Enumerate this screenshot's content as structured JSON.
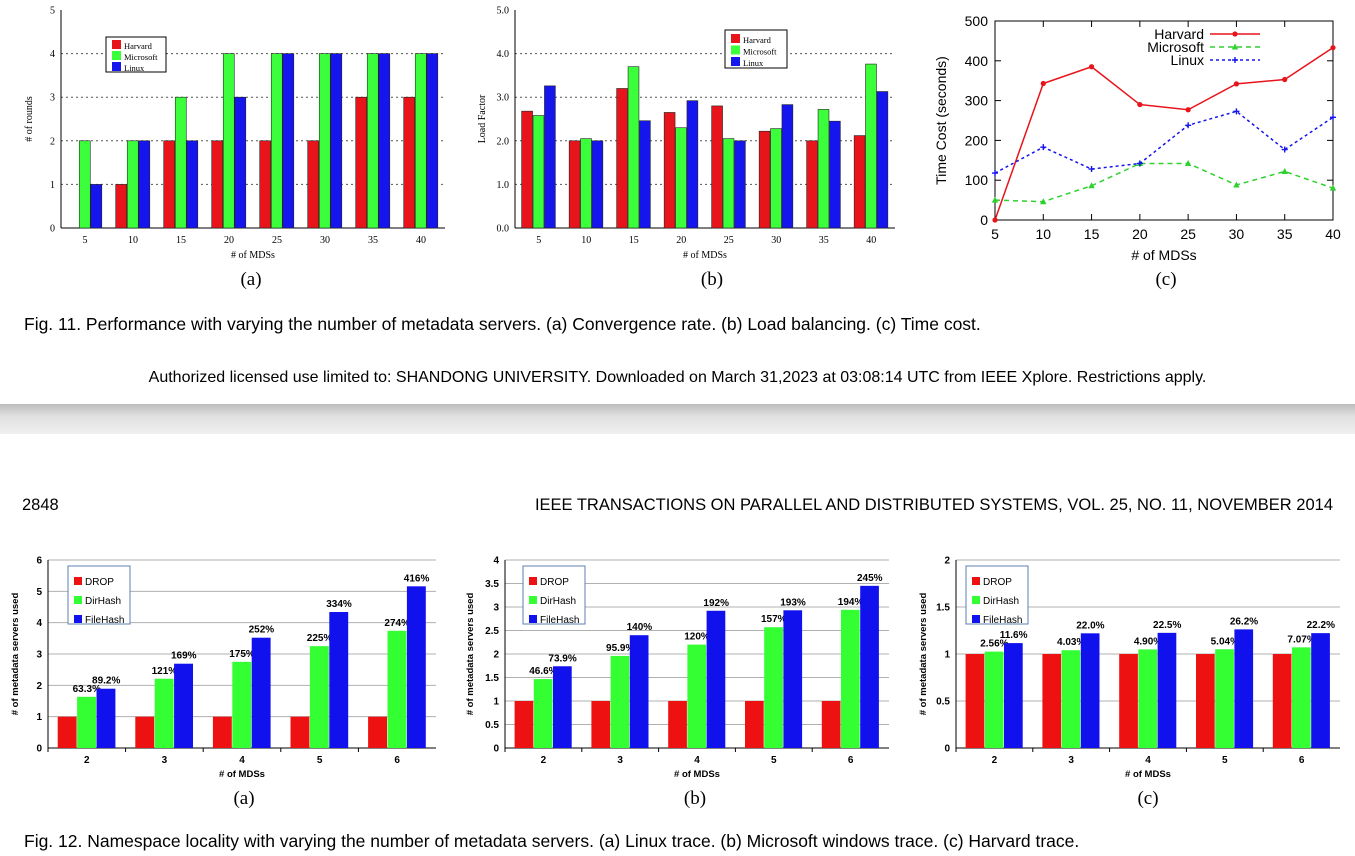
{
  "fig11": {
    "charts": [
      {
        "type": "bar",
        "subfig": "(a)",
        "xlabel": "# of MDSs",
        "ylabel": "# of rounds",
        "categories": [
          "5",
          "10",
          "15",
          "20",
          "25",
          "30",
          "35",
          "40"
        ],
        "ylim": [
          0,
          5
        ],
        "yticks": [
          "0",
          "1",
          "2",
          "3",
          "4",
          "5"
        ],
        "legend_placement": "top-left",
        "series": [
          {
            "name": "Harvard",
            "color": "#e8141b",
            "values": [
              0,
              1,
              2,
              2,
              2,
              2,
              3,
              3
            ]
          },
          {
            "name": "Microsoft",
            "color": "#3aff3a",
            "values": [
              2,
              2,
              3,
              4,
              4,
              4,
              4,
              4
            ]
          },
          {
            "name": "Linux",
            "color": "#1515ee",
            "values": [
              1,
              2,
              2,
              3,
              4,
              4,
              4,
              4
            ]
          }
        ]
      },
      {
        "type": "bar",
        "subfig": "(b)",
        "xlabel": "# of MDSs",
        "ylabel": "Load Factor",
        "categories": [
          "5",
          "10",
          "15",
          "20",
          "25",
          "30",
          "35",
          "40"
        ],
        "ylim": [
          0,
          5
        ],
        "yticks": [
          "0.0",
          "1.0",
          "2.0",
          "3.0",
          "4.0",
          "5.0"
        ],
        "legend_placement": "top-right",
        "series": [
          {
            "name": "Harvard",
            "color": "#e8141b",
            "values": [
              2.68,
              2.0,
              3.2,
              2.65,
              2.8,
              2.22,
              2.0,
              2.12
            ]
          },
          {
            "name": "Microsoft",
            "color": "#3aff3a",
            "values": [
              2.58,
              2.05,
              3.7,
              2.3,
              2.05,
              2.28,
              2.72,
              3.76
            ]
          },
          {
            "name": "Linux",
            "color": "#1515ee",
            "values": [
              3.26,
              2.0,
              2.46,
              2.92,
              2.0,
              2.83,
              2.45,
              3.13
            ]
          }
        ]
      },
      {
        "type": "line",
        "subfig": "(c)",
        "xlabel": "# of MDSs",
        "ylabel": "Time Cost (seconds)",
        "x": [
          5,
          10,
          15,
          20,
          25,
          30,
          35,
          40
        ],
        "xlim": [
          5,
          40
        ],
        "ylim": [
          0,
          500
        ],
        "yticks": [
          "0",
          "100",
          "200",
          "300",
          "400",
          "500"
        ],
        "xticks": [
          "5",
          "10",
          "15",
          "20",
          "25",
          "30",
          "35",
          "40"
        ],
        "legend_placement": "top-center",
        "series": [
          {
            "name": "Harvard",
            "color": "#e8141b",
            "dash": "",
            "values": [
              0,
              343,
              385,
              290,
              277,
              342,
              353,
              433
            ]
          },
          {
            "name": "Microsoft",
            "color": "#2ed12e",
            "dash": "5,4",
            "values": [
              50,
              46,
              86,
              142,
              142,
              88,
              122,
              80
            ]
          },
          {
            "name": "Linux",
            "color": "#1515ee",
            "dash": "3,3",
            "values": [
              118,
              183,
              128,
              142,
              238,
              273,
              177,
              258
            ]
          }
        ]
      }
    ],
    "caption": "Fig. 11. Performance with varying the number of metadata servers. (a) Convergence rate. (b) Load balancing. (c) Time cost."
  },
  "license": "Authorized licensed use limited to: SHANDONG UNIVERSITY. Downloaded on March 31,2023 at 03:08:14 UTC from IEEE Xplore.  Restrictions apply.",
  "header": {
    "page_number": "2848",
    "journal": "IEEE TRANSACTIONS ON PARALLEL AND DISTRIBUTED SYSTEMS,    VOL. 25,    NO. 11,    NOVEMBER 2014"
  },
  "fig12": {
    "charts": [
      {
        "type": "bar",
        "subfig": "(a)",
        "xlabel": "# of MDSs",
        "ylabel": "# of metadata servers used",
        "categories": [
          "2",
          "3",
          "4",
          "5",
          "6"
        ],
        "ylim": [
          0,
          6
        ],
        "yticks": [
          "0",
          "1",
          "2",
          "3",
          "4",
          "5",
          "6"
        ],
        "legend_placement": "top-left",
        "series": [
          {
            "name": "DROP",
            "color": "#ee1111",
            "values": [
              1,
              1,
              1,
              1,
              1
            ]
          },
          {
            "name": "DirHash",
            "color": "#33ff33",
            "values": [
              1.633,
              2.21,
              2.75,
              3.25,
              3.74
            ],
            "labels": [
              "63.3%",
              "121%",
              "175%",
              "225%",
              "274%"
            ]
          },
          {
            "name": "FileHash",
            "color": "#1111ee",
            "values": [
              1.892,
              2.69,
              3.52,
              4.34,
              5.16
            ],
            "labels": [
              "89.2%",
              "169%",
              "252%",
              "334%",
              "416%"
            ]
          }
        ]
      },
      {
        "type": "bar",
        "subfig": "(b)",
        "xlabel": "# of MDSs",
        "ylabel": "# of metadata servers used",
        "categories": [
          "2",
          "3",
          "4",
          "5",
          "6"
        ],
        "ylim": [
          0,
          4
        ],
        "yticks": [
          "0",
          "0.5",
          "1",
          "1.5",
          "2",
          "2.5",
          "3",
          "3.5",
          "4"
        ],
        "legend_placement": "top-left",
        "series": [
          {
            "name": "DROP",
            "color": "#ee1111",
            "values": [
              1,
              1,
              1,
              1,
              1
            ]
          },
          {
            "name": "DirHash",
            "color": "#33ff33",
            "values": [
              1.466,
              1.959,
              2.2,
              2.57,
              2.94
            ],
            "labels": [
              "46.6%",
              "95.9%",
              "120%",
              "157%",
              "194%"
            ]
          },
          {
            "name": "FileHash",
            "color": "#1111ee",
            "values": [
              1.739,
              2.4,
              2.92,
              2.93,
              3.45
            ],
            "labels": [
              "73.9%",
              "140%",
              "192%",
              "193%",
              "245%"
            ]
          }
        ]
      },
      {
        "type": "bar",
        "subfig": "(c)",
        "xlabel": "# of MDSs",
        "ylabel": "# of metadata servers used",
        "categories": [
          "2",
          "3",
          "4",
          "5",
          "6"
        ],
        "ylim": [
          0,
          2
        ],
        "yticks": [
          "0",
          "0.5",
          "1",
          "1.5",
          "2"
        ],
        "legend_placement": "top-left",
        "series": [
          {
            "name": "DROP",
            "color": "#ee1111",
            "values": [
              1,
              1,
              1,
              1,
              1
            ]
          },
          {
            "name": "DirHash",
            "color": "#33ff33",
            "values": [
              1.0256,
              1.0403,
              1.049,
              1.0504,
              1.0707
            ],
            "labels": [
              "2.56%",
              "4.03%",
              "4.90%",
              "5.04%",
              "7.07%"
            ]
          },
          {
            "name": "FileHash",
            "color": "#1111ee",
            "values": [
              1.116,
              1.22,
              1.225,
              1.262,
              1.222
            ],
            "labels": [
              "11.6%",
              "22.0%",
              "22.5%",
              "26.2%",
              "22.2%"
            ]
          }
        ]
      }
    ],
    "caption": "Fig. 12. Namespace locality with varying the number of metadata servers. (a) Linux trace. (b) Microsoft windows trace. (c) Harvard trace."
  }
}
